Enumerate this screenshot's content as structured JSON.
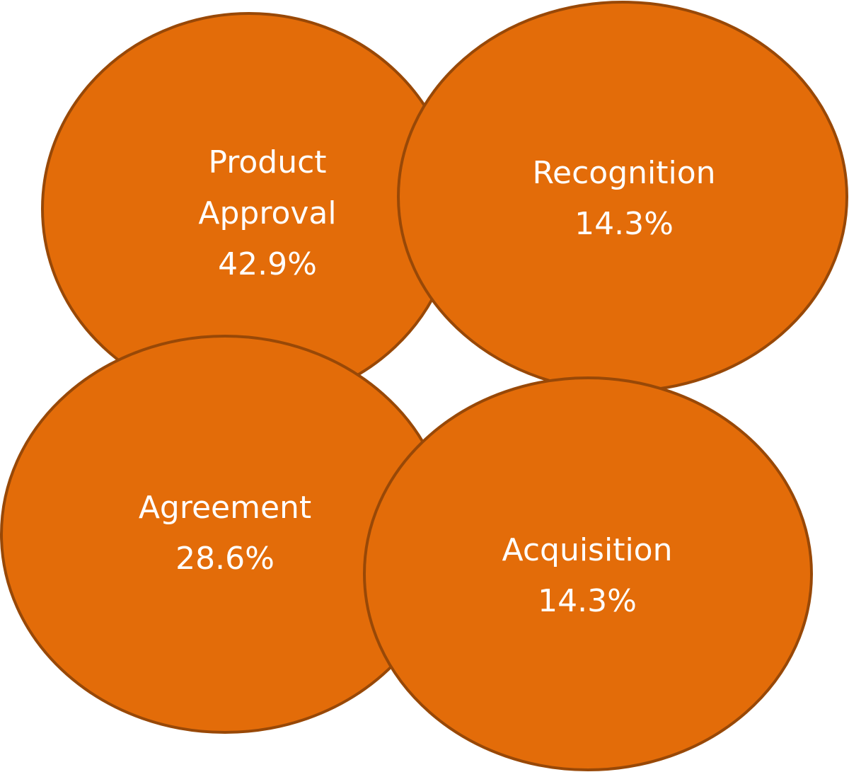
{
  "nodes": [
    {
      "label": "Product Approval",
      "value": "42.9%"
    },
    {
      "label": "Recognition",
      "value": "14.3%"
    },
    {
      "label": "Agreement",
      "value": "28.6%"
    },
    {
      "label": "Acquisition",
      "value": "14.3%"
    }
  ]
}
